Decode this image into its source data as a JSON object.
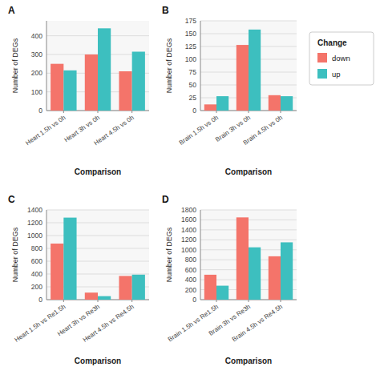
{
  "chart_data": [
    {
      "type": "bar",
      "title": "A",
      "categories": [
        "Heart 1.5h vs 0h",
        "Heart 3h vs 0h",
        "Heart 4.5h vs 0h"
      ],
      "series": [
        {
          "name": "down",
          "color": "#F4746A",
          "values": [
            250,
            300,
            210
          ]
        },
        {
          "name": "up",
          "color": "#3DBFBF",
          "values": [
            215,
            440,
            315
          ]
        }
      ],
      "ylabel": "Number of DEGs",
      "xlabel": "Comparison",
      "ylim": [
        0,
        480
      ],
      "yticks": [
        0,
        100,
        200,
        300,
        400
      ],
      "grid": true,
      "legend": "right",
      "legend_title": "Change"
    },
    {
      "type": "bar",
      "title": "B",
      "categories": [
        "Brain 1.5h vs 0h",
        "Brain 3h vs 0h",
        "Brain 4.5h vs 0h"
      ],
      "series": [
        {
          "name": "down",
          "color": "#F4746A",
          "values": [
            12,
            128,
            30
          ]
        },
        {
          "name": "up",
          "color": "#3DBFBF",
          "values": [
            28,
            158,
            28
          ]
        }
      ],
      "ylabel": "Number of DEGs",
      "xlabel": "Comparison",
      "ylim": [
        0,
        175
      ],
      "yticks": [
        0,
        25,
        50,
        75,
        100,
        125,
        150,
        175
      ],
      "grid": true
    },
    {
      "type": "bar",
      "title": "C",
      "categories": [
        "Heart 1.5h vs Re1.5h",
        "Heart 3h vs Re3h",
        "Heart 4.5h vs Re4.5h"
      ],
      "series": [
        {
          "name": "down",
          "color": "#F4746A",
          "values": [
            875,
            110,
            370
          ]
        },
        {
          "name": "up",
          "color": "#3DBFBF",
          "values": [
            1280,
            55,
            390
          ]
        }
      ],
      "ylabel": "Number of DEGs",
      "xlabel": "Comparison",
      "ylim": [
        0,
        1400
      ],
      "yticks": [
        0,
        200,
        400,
        600,
        800,
        1000,
        1200,
        1400
      ],
      "grid": true
    },
    {
      "type": "bar",
      "title": "D",
      "categories": [
        "Brain 1.5h vs Re1.5h",
        "Brain 3h vs Re3h",
        "Brain 4.5h vs Re4.5h"
      ],
      "series": [
        {
          "name": "down",
          "color": "#F4746A",
          "values": [
            500,
            1650,
            870
          ]
        },
        {
          "name": "up",
          "color": "#3DBFBF",
          "values": [
            280,
            1050,
            1150
          ]
        }
      ],
      "ylabel": "Number of DEGs",
      "xlabel": "Comparison",
      "ylim": [
        0,
        1800
      ],
      "yticks": [
        0,
        200,
        400,
        600,
        800,
        1000,
        1200,
        1400,
        1600,
        1800
      ],
      "grid": true
    }
  ]
}
